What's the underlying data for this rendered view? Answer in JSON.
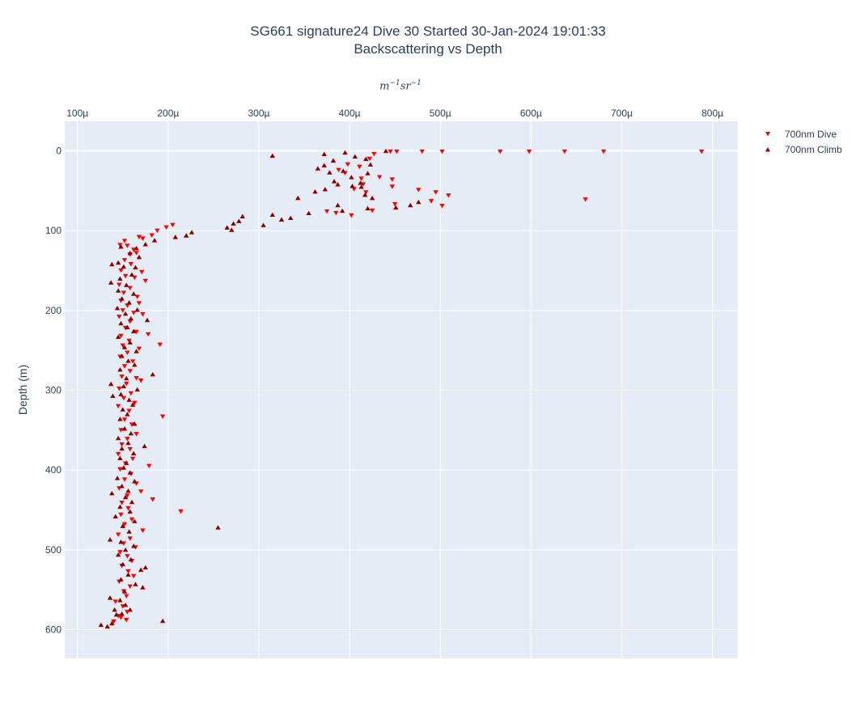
{
  "title": {
    "line1": "SG661 signature24 Dive 30 Started 30-Jan-2024 19:01:33",
    "line2": "Backscattering vs Depth"
  },
  "chart_data": {
    "type": "scatter",
    "title": "SG661 signature24 Dive 30 Started 30-Jan-2024 19:01:33 Backscattering vs Depth",
    "xlabel": "m^-1 sr^-1",
    "ylabel": "Depth (m)",
    "xlim": [
      8.6e-05,
      0.000828
    ],
    "ylim": [
      636,
      -37
    ],
    "x_ticks": [
      0.0001,
      0.0002,
      0.0003,
      0.0004,
      0.0005,
      0.0006,
      0.0007,
      0.0008
    ],
    "x_tick_labels": [
      "100µ",
      "200µ",
      "300µ",
      "400µ",
      "500µ",
      "600µ",
      "700µ",
      "800µ"
    ],
    "y_ticks": [
      0,
      100,
      200,
      300,
      400,
      500,
      600
    ],
    "y_tick_labels": [
      "0",
      "100",
      "200",
      "300",
      "400",
      "500",
      "600"
    ],
    "x_axis_position": "top",
    "grid": true,
    "legend_position": "top-right",
    "series": [
      {
        "name": "700nm Dive",
        "color": "#ff0000",
        "marker": "triangle-down",
        "points": [
          [
            0.000445,
            1
          ],
          [
            0.000452,
            1
          ],
          [
            0.00048,
            1
          ],
          [
            0.000502,
            1
          ],
          [
            0.000566,
            1
          ],
          [
            0.000598,
            1
          ],
          [
            0.000637,
            1
          ],
          [
            0.00068,
            1
          ],
          [
            0.000788,
            1
          ],
          [
            0.000427,
            4
          ],
          [
            0.000422,
            10
          ],
          [
            0.000398,
            17
          ],
          [
            0.000388,
            24
          ],
          [
            0.000411,
            20
          ],
          [
            0.000395,
            28
          ],
          [
            0.000413,
            35
          ],
          [
            0.000433,
            33
          ],
          [
            0.000447,
            36
          ],
          [
            0.000415,
            42
          ],
          [
            0.000405,
            48
          ],
          [
            0.000447,
            45
          ],
          [
            0.000418,
            52
          ],
          [
            0.000476,
            49
          ],
          [
            0.000495,
            52
          ],
          [
            0.000509,
            56
          ],
          [
            0.00049,
            63
          ],
          [
            0.000502,
            69
          ],
          [
            0.00045,
            67
          ],
          [
            0.000425,
            75
          ],
          [
            0.000402,
            81
          ],
          [
            0.00066,
            61
          ],
          [
            0.000375,
            76
          ],
          [
            0.000385,
            78
          ],
          [
            0.000188,
            100
          ],
          [
            0.000198,
            96
          ],
          [
            0.000205,
            93
          ],
          [
            0.000182,
            106
          ],
          [
            0.000172,
            110
          ],
          [
            0.000168,
            108
          ],
          [
            0.000152,
            113
          ],
          [
            0.000155,
            119
          ],
          [
            0.000162,
            124
          ],
          [
            0.000147,
            118
          ],
          [
            0.000158,
            130
          ],
          [
            0.000165,
            128
          ],
          [
            0.000152,
            137
          ],
          [
            0.000159,
            142
          ],
          [
            0.000148,
            150
          ],
          [
            0.000171,
            152
          ],
          [
            0.000153,
            157
          ],
          [
            0.000163,
            159
          ],
          [
            0.000175,
            163
          ],
          [
            0.000146,
            168
          ],
          [
            0.000158,
            172
          ],
          [
            0.000151,
            178
          ],
          [
            0.000166,
            183
          ],
          [
            0.000148,
            188
          ],
          [
            0.000168,
            191
          ],
          [
            0.000172,
            205
          ],
          [
            0.000155,
            194
          ],
          [
            0.00015,
            200
          ],
          [
            0.000162,
            203
          ],
          [
            0.000146,
            208
          ],
          [
            0.000158,
            214
          ],
          [
            0.000153,
            222
          ],
          [
            0.000165,
            227
          ],
          [
            0.000148,
            232
          ],
          [
            0.000178,
            230
          ],
          [
            0.000157,
            238
          ],
          [
            0.00015,
            244
          ],
          [
            0.000168,
            248
          ],
          [
            0.000191,
            243
          ],
          [
            0.000155,
            253
          ],
          [
            0.000147,
            258
          ],
          [
            0.000161,
            264
          ],
          [
            0.000152,
            270
          ],
          [
            0.000158,
            276
          ],
          [
            0.000149,
            283
          ],
          [
            0.000165,
            285
          ],
          [
            0.00017,
            288
          ],
          [
            0.000154,
            292
          ],
          [
            0.000146,
            298
          ],
          [
            0.000159,
            304
          ],
          [
            0.000151,
            310
          ],
          [
            0.000163,
            316
          ],
          [
            0.000145,
            320
          ],
          [
            0.000157,
            326
          ],
          [
            0.000194,
            333
          ],
          [
            0.000152,
            337
          ],
          [
            0.00016,
            343
          ],
          [
            0.000148,
            350
          ],
          [
            0.000165,
            355
          ],
          [
            0.000155,
            361
          ],
          [
            0.000149,
            368
          ],
          [
            0.000158,
            374
          ],
          [
            0.000145,
            380
          ],
          [
            0.000161,
            386
          ],
          [
            0.000153,
            392
          ],
          [
            0.000179,
            395
          ],
          [
            0.000147,
            399
          ],
          [
            0.000159,
            405
          ],
          [
            0.000152,
            412
          ],
          [
            0.000165,
            417
          ],
          [
            0.000146,
            423
          ],
          [
            0.00017,
            427
          ],
          [
            0.000155,
            432
          ],
          [
            0.000183,
            437
          ],
          [
            0.000149,
            441
          ],
          [
            0.000214,
            452
          ],
          [
            0.000156,
            448
          ],
          [
            0.000148,
            456
          ],
          [
            0.00016,
            462
          ],
          [
            0.000152,
            468
          ],
          [
            0.000172,
            476
          ],
          [
            0.000145,
            481
          ],
          [
            0.000158,
            486
          ],
          [
            0.000151,
            492
          ],
          [
            0.000164,
            497
          ],
          [
            0.000147,
            503
          ],
          [
            0.000155,
            508
          ],
          [
            0.00016,
            514
          ],
          [
            0.000149,
            520
          ],
          [
            0.000156,
            527
          ],
          [
            0.000162,
            533
          ],
          [
            0.000146,
            540
          ],
          [
            0.000158,
            546
          ],
          [
            0.000151,
            552
          ],
          [
            0.000154,
            558
          ],
          [
            0.000142,
            565
          ],
          [
            0.00015,
            571
          ],
          [
            0.000155,
            578
          ],
          [
            0.000145,
            583
          ],
          [
            0.000154,
            588
          ],
          [
            0.00014,
            590
          ],
          [
            0.000148,
            585
          ]
        ]
      },
      {
        "name": "700nm Climb",
        "color": "#8b0000",
        "marker": "triangle-up",
        "points": [
          [
            0.000315,
            6
          ],
          [
            0.00044,
            0
          ],
          [
            0.000395,
            2
          ],
          [
            0.000372,
            4
          ],
          [
            0.000406,
            7
          ],
          [
            0.000382,
            12
          ],
          [
            0.000418,
            10
          ],
          [
            0.000365,
            22
          ],
          [
            0.000372,
            18
          ],
          [
            0.000378,
            27
          ],
          [
            0.000393,
            25
          ],
          [
            0.000423,
            17
          ],
          [
            0.00042,
            28
          ],
          [
            0.000402,
            33
          ],
          [
            0.000383,
            38
          ],
          [
            0.000412,
            40
          ],
          [
            0.000373,
            48
          ],
          [
            0.000403,
            44
          ],
          [
            0.000387,
            42
          ],
          [
            0.000362,
            51
          ],
          [
            0.000343,
            59
          ],
          [
            0.000413,
            45
          ],
          [
            0.000417,
            55
          ],
          [
            0.000425,
            59
          ],
          [
            0.00042,
            72
          ],
          [
            0.000387,
            68
          ],
          [
            0.000392,
            75
          ],
          [
            0.000355,
            78
          ],
          [
            0.000451,
            71
          ],
          [
            0.000467,
            68
          ],
          [
            0.000476,
            64
          ],
          [
            0.000315,
            80
          ],
          [
            0.000335,
            84
          ],
          [
            0.000325,
            86
          ],
          [
            0.000305,
            93
          ],
          [
            0.000282,
            82
          ],
          [
            0.000278,
            88
          ],
          [
            0.000272,
            91
          ],
          [
            0.000265,
            96
          ],
          [
            0.00027,
            99
          ],
          [
            0.00022,
            106
          ],
          [
            0.000226,
            102
          ],
          [
            0.000208,
            108
          ],
          [
            0.000185,
            112
          ],
          [
            0.000175,
            117
          ],
          [
            0.000165,
            122
          ],
          [
            0.000148,
            120
          ],
          [
            0.000138,
            142
          ],
          [
            0.000145,
            140
          ],
          [
            0.000168,
            133
          ],
          [
            0.000158,
            128
          ],
          [
            0.000151,
            145
          ],
          [
            0.000164,
            146
          ],
          [
            0.00016,
            155
          ],
          [
            0.000147,
            160
          ],
          [
            0.000137,
            165
          ],
          [
            0.000154,
            168
          ],
          [
            0.000145,
            175
          ],
          [
            0.000162,
            179
          ],
          [
            0.000149,
            185
          ],
          [
            0.000157,
            190
          ],
          [
            0.000144,
            197
          ],
          [
            0.000166,
            199
          ],
          [
            0.000153,
            204
          ],
          [
            0.000159,
            210
          ],
          [
            0.000148,
            216
          ],
          [
            0.000177,
            212
          ],
          [
            0.000155,
            221
          ],
          [
            0.000162,
            226
          ],
          [
            0.000145,
            233
          ],
          [
            0.000158,
            240
          ],
          [
            0.000152,
            246
          ],
          [
            0.000165,
            251
          ],
          [
            0.000149,
            257
          ],
          [
            0.000156,
            263
          ],
          [
            0.000163,
            268
          ],
          [
            0.000147,
            274
          ],
          [
            0.000183,
            280
          ],
          [
            0.000137,
            292
          ],
          [
            0.000154,
            285
          ],
          [
            0.000151,
            295
          ],
          [
            0.000166,
            299
          ],
          [
            0.000148,
            305
          ],
          [
            0.000157,
            312
          ],
          [
            0.000139,
            307
          ],
          [
            0.000161,
            318
          ],
          [
            0.00015,
            324
          ],
          [
            0.000155,
            330
          ],
          [
            0.000147,
            336
          ],
          [
            0.000163,
            342
          ],
          [
            0.000152,
            348
          ],
          [
            0.000159,
            354
          ],
          [
            0.000145,
            360
          ],
          [
            0.000174,
            370
          ],
          [
            0.000156,
            366
          ],
          [
            0.000149,
            373
          ],
          [
            0.000162,
            379
          ],
          [
            0.000147,
            385
          ],
          [
            0.000154,
            391
          ],
          [
            0.000151,
            397
          ],
          [
            0.000158,
            403
          ],
          [
            0.000144,
            410
          ],
          [
            0.000163,
            414
          ],
          [
            0.000149,
            420
          ],
          [
            0.000156,
            426
          ],
          [
            0.000138,
            429
          ],
          [
            0.000153,
            434
          ],
          [
            0.00016,
            440
          ],
          [
            0.000147,
            446
          ],
          [
            0.000158,
            452
          ],
          [
            0.000142,
            458
          ],
          [
            0.000163,
            464
          ],
          [
            0.000255,
            472
          ],
          [
            0.00015,
            470
          ],
          [
            0.000157,
            477
          ],
          [
            0.000136,
            487
          ],
          [
            0.000148,
            490
          ],
          [
            0.000162,
            495
          ],
          [
            0.000153,
            500
          ],
          [
            0.000145,
            506
          ],
          [
            0.000159,
            512
          ],
          [
            0.00015,
            518
          ],
          [
            0.00017,
            525
          ],
          [
            0.000175,
            522
          ],
          [
            0.000156,
            531
          ],
          [
            0.000148,
            537
          ],
          [
            0.000164,
            543
          ],
          [
            0.000172,
            547
          ],
          [
            0.000152,
            552
          ],
          [
            0.000136,
            560
          ],
          [
            0.000147,
            563
          ],
          [
            0.000153,
            569
          ],
          [
            0.000141,
            575
          ],
          [
            0.000149,
            580
          ],
          [
            0.000194,
            589
          ],
          [
            0.000138,
            592
          ],
          [
            0.000126,
            594
          ],
          [
            0.000133,
            596
          ],
          [
            0.000143,
            581
          ],
          [
            0.000158,
            575
          ]
        ]
      }
    ]
  },
  "legend": {
    "dive_label": "700nm Dive",
    "climb_label": "700nm Climb"
  }
}
